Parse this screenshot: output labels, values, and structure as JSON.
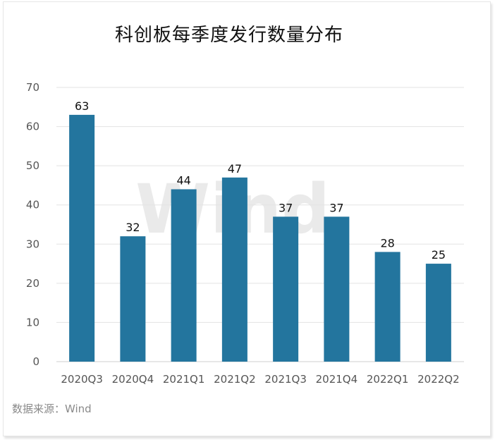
{
  "chart_data": {
    "type": "bar",
    "title": "科创板每季度发行数量分布",
    "categories": [
      "2020Q3",
      "2020Q4",
      "2021Q1",
      "2021Q2",
      "2021Q3",
      "2021Q4",
      "2022Q1",
      "2022Q2"
    ],
    "values": [
      63,
      32,
      44,
      47,
      37,
      37,
      28,
      25
    ],
    "ylim": [
      0,
      70
    ],
    "yticks": [
      0,
      10,
      20,
      30,
      40,
      50,
      60,
      70
    ],
    "grid": true,
    "bar_color": "#23759e",
    "source": "数据来源：Wind",
    "watermark": "Wind"
  }
}
